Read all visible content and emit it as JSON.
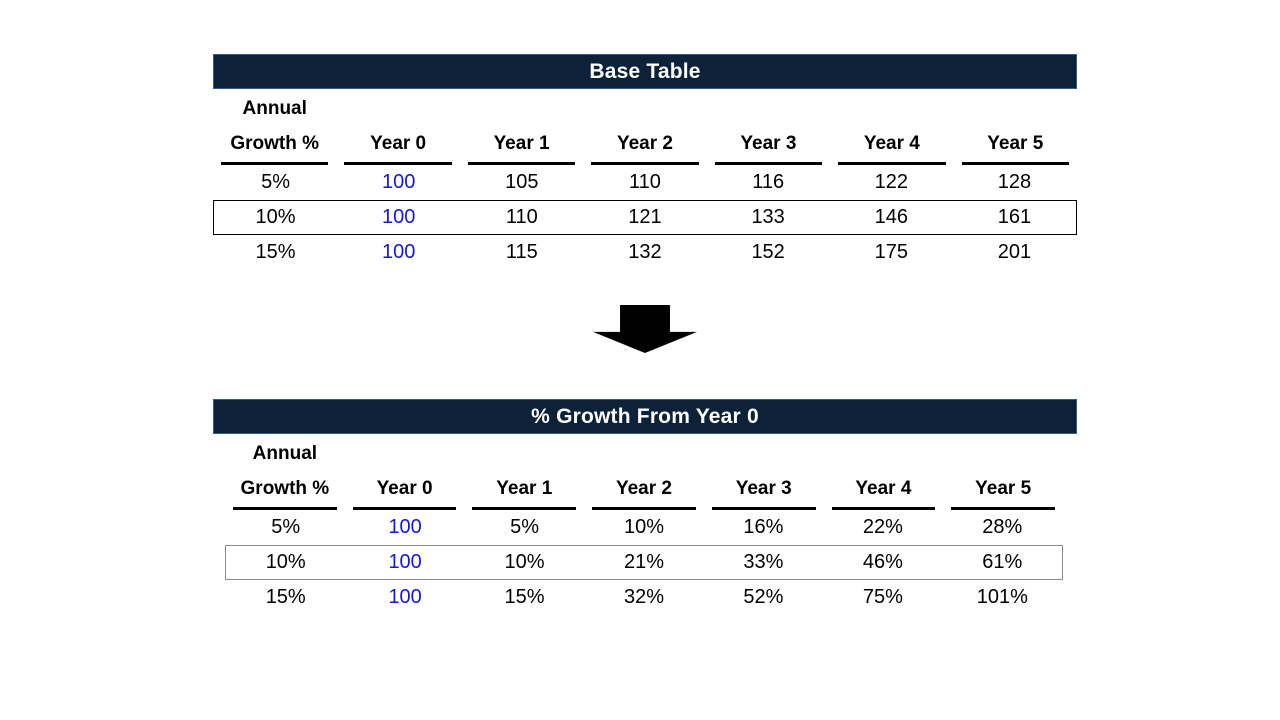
{
  "colors": {
    "header_bar_fill": "#0d2238",
    "header_bar_border": "#2e5e8e",
    "header_bar_text": "#ffffff",
    "year0_value_blue": "#1515e8",
    "table1_highlight_box": "#000000",
    "table2_highlight_box": "#8a8a8a",
    "arrow_black": "#000000"
  },
  "arrow": {
    "icon": "down-block-arrow"
  },
  "table1": {
    "title": "Base Table",
    "annual_label": "Annual",
    "headers": [
      "Growth %",
      "Year 0",
      "Year 1",
      "Year 2",
      "Year 3",
      "Year 4",
      "Year 5"
    ],
    "highlighted_row_index": 1,
    "rows": [
      {
        "cells": [
          "5%",
          "100",
          "105",
          "110",
          "116",
          "122",
          "128"
        ]
      },
      {
        "cells": [
          "10%",
          "100",
          "110",
          "121",
          "133",
          "146",
          "161"
        ]
      },
      {
        "cells": [
          "15%",
          "100",
          "115",
          "132",
          "152",
          "175",
          "201"
        ]
      }
    ]
  },
  "table2": {
    "title": "% Growth From Year 0",
    "annual_label": "Annual",
    "headers": [
      "Growth %",
      "Year 0",
      "Year 1",
      "Year 2",
      "Year 3",
      "Year 4",
      "Year 5"
    ],
    "highlighted_row_index": 1,
    "rows": [
      {
        "cells": [
          "5%",
          "100",
          "5%",
          "10%",
          "16%",
          "22%",
          "28%"
        ]
      },
      {
        "cells": [
          "10%",
          "100",
          "10%",
          "21%",
          "33%",
          "46%",
          "61%"
        ]
      },
      {
        "cells": [
          "15%",
          "100",
          "15%",
          "32%",
          "52%",
          "75%",
          "101%"
        ]
      }
    ]
  },
  "chart_data": [
    {
      "type": "table",
      "title": "Base Table",
      "columns": [
        "Annual Growth %",
        "Year 0",
        "Year 1",
        "Year 2",
        "Year 3",
        "Year 4",
        "Year 5"
      ],
      "rows": [
        [
          "5%",
          100,
          105,
          110,
          116,
          122,
          128
        ],
        [
          "10%",
          100,
          110,
          121,
          133,
          146,
          161
        ],
        [
          "15%",
          100,
          115,
          132,
          152,
          175,
          201
        ]
      ]
    },
    {
      "type": "table",
      "title": "% Growth From Year 0",
      "columns": [
        "Annual Growth %",
        "Year 0",
        "Year 1",
        "Year 2",
        "Year 3",
        "Year 4",
        "Year 5"
      ],
      "rows": [
        [
          "5%",
          100,
          "5%",
          "10%",
          "16%",
          "22%",
          "28%"
        ],
        [
          "10%",
          100,
          "10%",
          "21%",
          "33%",
          "46%",
          "61%"
        ],
        [
          "15%",
          100,
          "15%",
          "32%",
          "52%",
          "75%",
          "101%"
        ]
      ]
    }
  ]
}
